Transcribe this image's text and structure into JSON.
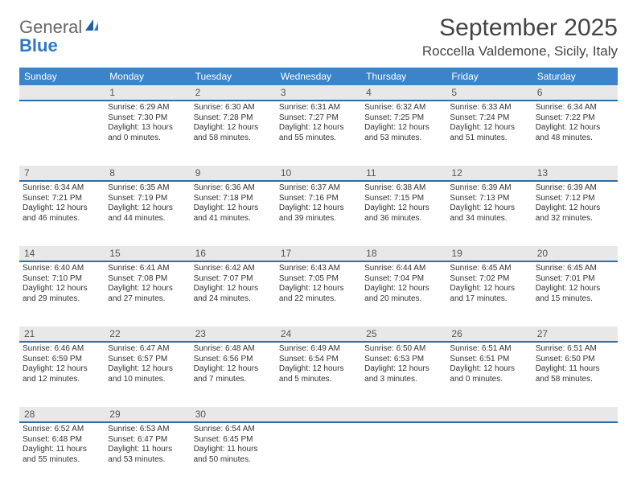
{
  "logo": {
    "general": "General",
    "blue": "Blue"
  },
  "title": "September 2025",
  "location": "Roccella Valdemone, Sicily, Italy",
  "weekday_header_bg": "#3b84c9",
  "number_row_bg": "#e8e8e8",
  "day_border_color": "#2c6fab",
  "weekdays": [
    "Sunday",
    "Monday",
    "Tuesday",
    "Wednesday",
    "Thursday",
    "Friday",
    "Saturday"
  ],
  "first_weekday_index": 1,
  "days": [
    {
      "n": 1,
      "sunrise": "6:29 AM",
      "sunset": "7:30 PM",
      "daylight": "13 hours and 0 minutes."
    },
    {
      "n": 2,
      "sunrise": "6:30 AM",
      "sunset": "7:28 PM",
      "daylight": "12 hours and 58 minutes."
    },
    {
      "n": 3,
      "sunrise": "6:31 AM",
      "sunset": "7:27 PM",
      "daylight": "12 hours and 55 minutes."
    },
    {
      "n": 4,
      "sunrise": "6:32 AM",
      "sunset": "7:25 PM",
      "daylight": "12 hours and 53 minutes."
    },
    {
      "n": 5,
      "sunrise": "6:33 AM",
      "sunset": "7:24 PM",
      "daylight": "12 hours and 51 minutes."
    },
    {
      "n": 6,
      "sunrise": "6:34 AM",
      "sunset": "7:22 PM",
      "daylight": "12 hours and 48 minutes."
    },
    {
      "n": 7,
      "sunrise": "6:34 AM",
      "sunset": "7:21 PM",
      "daylight": "12 hours and 46 minutes."
    },
    {
      "n": 8,
      "sunrise": "6:35 AM",
      "sunset": "7:19 PM",
      "daylight": "12 hours and 44 minutes."
    },
    {
      "n": 9,
      "sunrise": "6:36 AM",
      "sunset": "7:18 PM",
      "daylight": "12 hours and 41 minutes."
    },
    {
      "n": 10,
      "sunrise": "6:37 AM",
      "sunset": "7:16 PM",
      "daylight": "12 hours and 39 minutes."
    },
    {
      "n": 11,
      "sunrise": "6:38 AM",
      "sunset": "7:15 PM",
      "daylight": "12 hours and 36 minutes."
    },
    {
      "n": 12,
      "sunrise": "6:39 AM",
      "sunset": "7:13 PM",
      "daylight": "12 hours and 34 minutes."
    },
    {
      "n": 13,
      "sunrise": "6:39 AM",
      "sunset": "7:12 PM",
      "daylight": "12 hours and 32 minutes."
    },
    {
      "n": 14,
      "sunrise": "6:40 AM",
      "sunset": "7:10 PM",
      "daylight": "12 hours and 29 minutes."
    },
    {
      "n": 15,
      "sunrise": "6:41 AM",
      "sunset": "7:08 PM",
      "daylight": "12 hours and 27 minutes."
    },
    {
      "n": 16,
      "sunrise": "6:42 AM",
      "sunset": "7:07 PM",
      "daylight": "12 hours and 24 minutes."
    },
    {
      "n": 17,
      "sunrise": "6:43 AM",
      "sunset": "7:05 PM",
      "daylight": "12 hours and 22 minutes."
    },
    {
      "n": 18,
      "sunrise": "6:44 AM",
      "sunset": "7:04 PM",
      "daylight": "12 hours and 20 minutes."
    },
    {
      "n": 19,
      "sunrise": "6:45 AM",
      "sunset": "7:02 PM",
      "daylight": "12 hours and 17 minutes."
    },
    {
      "n": 20,
      "sunrise": "6:45 AM",
      "sunset": "7:01 PM",
      "daylight": "12 hours and 15 minutes."
    },
    {
      "n": 21,
      "sunrise": "6:46 AM",
      "sunset": "6:59 PM",
      "daylight": "12 hours and 12 minutes."
    },
    {
      "n": 22,
      "sunrise": "6:47 AM",
      "sunset": "6:57 PM",
      "daylight": "12 hours and 10 minutes."
    },
    {
      "n": 23,
      "sunrise": "6:48 AM",
      "sunset": "6:56 PM",
      "daylight": "12 hours and 7 minutes."
    },
    {
      "n": 24,
      "sunrise": "6:49 AM",
      "sunset": "6:54 PM",
      "daylight": "12 hours and 5 minutes."
    },
    {
      "n": 25,
      "sunrise": "6:50 AM",
      "sunset": "6:53 PM",
      "daylight": "12 hours and 3 minutes."
    },
    {
      "n": 26,
      "sunrise": "6:51 AM",
      "sunset": "6:51 PM",
      "daylight": "12 hours and 0 minutes."
    },
    {
      "n": 27,
      "sunrise": "6:51 AM",
      "sunset": "6:50 PM",
      "daylight": "11 hours and 58 minutes."
    },
    {
      "n": 28,
      "sunrise": "6:52 AM",
      "sunset": "6:48 PM",
      "daylight": "11 hours and 55 minutes."
    },
    {
      "n": 29,
      "sunrise": "6:53 AM",
      "sunset": "6:47 PM",
      "daylight": "11 hours and 53 minutes."
    },
    {
      "n": 30,
      "sunrise": "6:54 AM",
      "sunset": "6:45 PM",
      "daylight": "11 hours and 50 minutes."
    }
  ],
  "labels": {
    "sunrise": "Sunrise:",
    "sunset": "Sunset:",
    "daylight": "Daylight:"
  }
}
